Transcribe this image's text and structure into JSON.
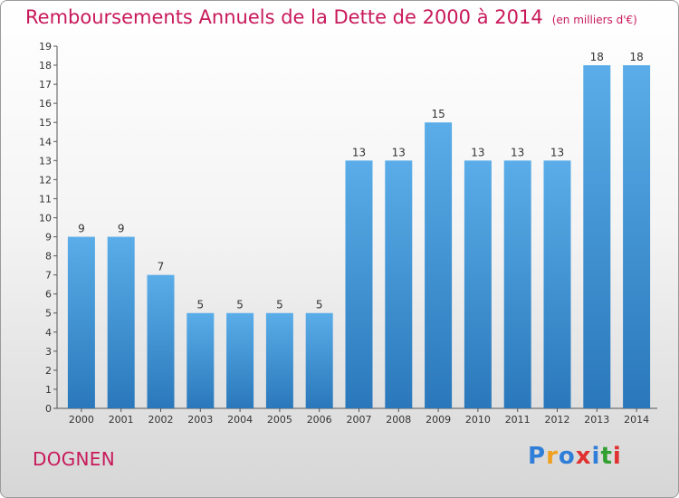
{
  "header": {
    "title": "Remboursements Annuels de la Dette de 2000 à 2014",
    "unit": "(en milliers d'€)"
  },
  "footer": {
    "commune": "DOGNEN",
    "logo_letters": [
      "P",
      "r",
      "o",
      "x",
      "i",
      "t",
      "i"
    ],
    "logo_colors": [
      "#2f7ed8",
      "#f0a020",
      "#2f7ed8",
      "#e03030",
      "#2f7ed8",
      "#30a030",
      "#e03030"
    ]
  },
  "chart_data": {
    "type": "bar",
    "title": "Remboursements Annuels de la Dette de 2000 à 2014",
    "subtitle": "(en milliers d'€)",
    "xlabel": "",
    "ylabel": "",
    "categories": [
      "2000",
      "2001",
      "2002",
      "2003",
      "2004",
      "2005",
      "2006",
      "2007",
      "2008",
      "2009",
      "2010",
      "2011",
      "2012",
      "2013",
      "2014"
    ],
    "values": [
      9,
      9,
      7,
      5,
      5,
      5,
      5,
      13,
      13,
      15,
      13,
      13,
      13,
      18,
      18
    ],
    "ylim": [
      0,
      19
    ],
    "yticks": [
      0,
      1,
      2,
      3,
      4,
      5,
      6,
      7,
      8,
      9,
      10,
      11,
      12,
      13,
      14,
      15,
      16,
      17,
      18,
      19
    ],
    "grid": false,
    "legend": "none",
    "bar_color": "#4a9fe0"
  }
}
